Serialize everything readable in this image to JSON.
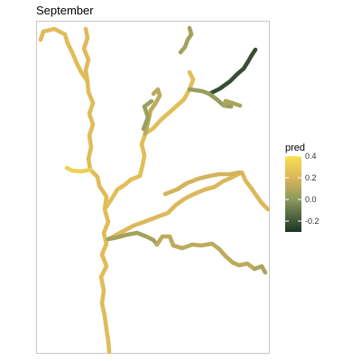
{
  "chart_data": {
    "type": "map",
    "title": "September",
    "legend": {
      "title": "pred",
      "ticks": [
        0.4,
        0.2,
        0.0,
        -0.2
      ],
      "tick_labels": [
        "0.4",
        "0.2",
        "0.0",
        "-0.2"
      ],
      "range": [
        -0.3,
        0.4
      ],
      "colors": [
        {
          "value": 0.4,
          "color": "#f7e050"
        },
        {
          "value": 0.2,
          "color": "#dcb65a"
        },
        {
          "value": 0.0,
          "color": "#8b9a5e"
        },
        {
          "value": -0.3,
          "color": "#1a3324"
        }
      ],
      "placement": "right"
    },
    "series": [
      {
        "id": "main-stem",
        "pred": 0.23
      },
      {
        "id": "west-fork",
        "pred": 0.22
      },
      {
        "id": "west-spur",
        "pred": 0.33
      },
      {
        "id": "central-fork",
        "pred": 0.24
      },
      {
        "id": "upper-branch",
        "pred": 0.12
      },
      {
        "id": "upper-left-branch",
        "pred": 0.04
      },
      {
        "id": "northeast-branch",
        "pred": -0.22
      },
      {
        "id": "northeast-lower",
        "pred": 0.03
      },
      {
        "id": "northeast-spur",
        "pred": 0.08
      },
      {
        "id": "top-branch",
        "pred": 0.06
      },
      {
        "id": "east-branch",
        "pred": 0.21
      },
      {
        "id": "middle-branch",
        "pred": 0.06
      },
      {
        "id": "middle-east",
        "pred": 0.18
      },
      {
        "id": "south-east-branch",
        "pred": 0.12
      },
      {
        "id": "south-east-tip",
        "pred": 0.08
      }
    ]
  }
}
